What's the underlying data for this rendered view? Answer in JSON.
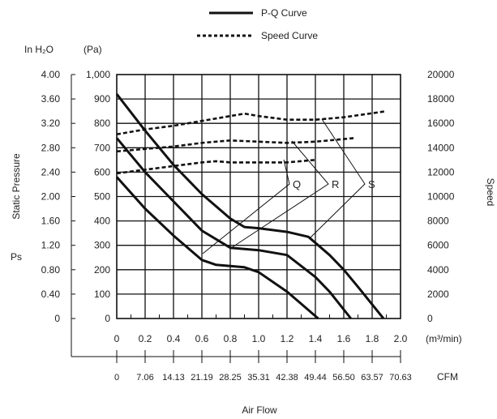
{
  "chart_data": {
    "type": "line",
    "xlabel": "Air Flow",
    "x_unit": "(m³/min)",
    "x_cfm_unit": "CFM",
    "xlim": [
      0,
      2.0
    ],
    "x_ticks": [
      "0",
      "0.2",
      "0.4",
      "0.6",
      "0.8",
      "1.0",
      "1.2",
      "1.4",
      "1.6",
      "1.8",
      "2.0"
    ],
    "x_cfm_ticks": [
      "0",
      "7.06",
      "14.13",
      "21.19",
      "28.25",
      "35.31",
      "42.38",
      "49.44",
      "56.50",
      "63.57",
      "70.63"
    ],
    "ylabel": "Static Pressure",
    "ylabel_ps": "Ps",
    "y_inh2o_unit": "In H₂O",
    "y_pa_unit": "(Pa)",
    "ylim": [
      0,
      1000
    ],
    "y_pa_ticks": [
      "0",
      "100",
      "200",
      "300",
      "400",
      "500",
      "600",
      "700",
      "800",
      "900",
      "1,000"
    ],
    "y_inh2o_ticks": [
      "0",
      "0.40",
      "0.80",
      "1.20",
      "1.60",
      "2.00",
      "2.40",
      "2.80",
      "3.20",
      "3.60",
      "4.00"
    ],
    "y2label": "Speed",
    "y2lim": [
      0,
      20000
    ],
    "y2_ticks": [
      "0",
      "2000",
      "4000",
      "6000",
      "8000",
      "10000",
      "12000",
      "14000",
      "16000",
      "18000",
      "20000"
    ],
    "grid": true,
    "legend": [
      {
        "label": "P-Q Curve",
        "style": "solid"
      },
      {
        "label": "Speed Curve",
        "style": "dotted"
      }
    ],
    "pq_series": [
      {
        "name": "Q",
        "points": [
          [
            0,
            580
          ],
          [
            0.2,
            450
          ],
          [
            0.4,
            340
          ],
          [
            0.6,
            240
          ],
          [
            0.7,
            220
          ],
          [
            0.9,
            210
          ],
          [
            1.0,
            190
          ],
          [
            1.2,
            110
          ],
          [
            1.3,
            60
          ],
          [
            1.42,
            0
          ]
        ]
      },
      {
        "name": "R",
        "points": [
          [
            0,
            740
          ],
          [
            0.2,
            600
          ],
          [
            0.4,
            480
          ],
          [
            0.6,
            360
          ],
          [
            0.8,
            290
          ],
          [
            1.0,
            280
          ],
          [
            1.2,
            260
          ],
          [
            1.4,
            170
          ],
          [
            1.5,
            110
          ],
          [
            1.65,
            0
          ]
        ]
      },
      {
        "name": "S",
        "points": [
          [
            0,
            920
          ],
          [
            0.2,
            770
          ],
          [
            0.4,
            630
          ],
          [
            0.6,
            510
          ],
          [
            0.8,
            410
          ],
          [
            0.9,
            375
          ],
          [
            1.0,
            370
          ],
          [
            1.2,
            355
          ],
          [
            1.35,
            335
          ],
          [
            1.5,
            260
          ],
          [
            1.6,
            200
          ],
          [
            1.7,
            130
          ],
          [
            1.88,
            0
          ]
        ]
      }
    ],
    "speed_series": [
      {
        "name": "Q",
        "points": [
          [
            0,
            11900
          ],
          [
            0.2,
            12200
          ],
          [
            0.4,
            12500
          ],
          [
            0.6,
            12800
          ],
          [
            0.7,
            12900
          ],
          [
            0.8,
            12800
          ],
          [
            1.0,
            12800
          ],
          [
            1.2,
            12800
          ],
          [
            1.4,
            13000
          ]
        ]
      },
      {
        "name": "R",
        "points": [
          [
            0,
            13700
          ],
          [
            0.2,
            13900
          ],
          [
            0.4,
            14100
          ],
          [
            0.6,
            14400
          ],
          [
            0.8,
            14600
          ],
          [
            1.0,
            14500
          ],
          [
            1.2,
            14400
          ],
          [
            1.4,
            14500
          ],
          [
            1.68,
            14800
          ]
        ]
      },
      {
        "name": "S",
        "points": [
          [
            0,
            15100
          ],
          [
            0.2,
            15500
          ],
          [
            0.4,
            15800
          ],
          [
            0.6,
            16200
          ],
          [
            0.8,
            16600
          ],
          [
            0.9,
            16800
          ],
          [
            1.0,
            16600
          ],
          [
            1.2,
            16300
          ],
          [
            1.4,
            16300
          ],
          [
            1.6,
            16500
          ],
          [
            1.9,
            17000
          ]
        ]
      }
    ],
    "series_labels": [
      "Q",
      "R",
      "S"
    ]
  }
}
